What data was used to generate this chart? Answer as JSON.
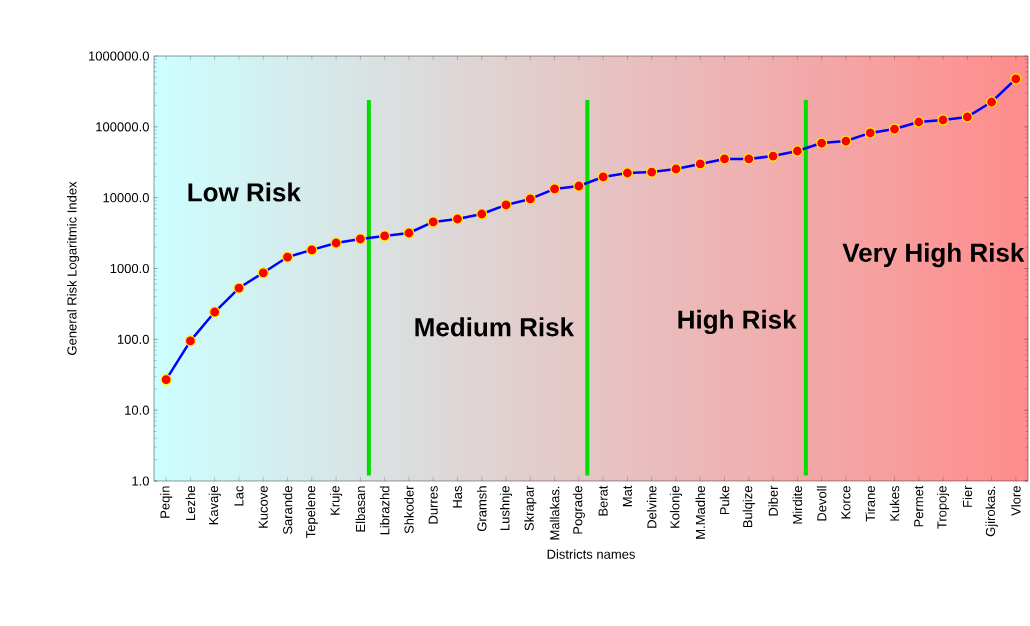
{
  "chart_data": {
    "type": "line",
    "xlabel": "Districts names",
    "ylabel": "General Risk Logaritmic Index",
    "categories": [
      "Peqin",
      "Lezhe",
      "Kavaje",
      "Lac",
      "Kucove",
      "Sarande",
      "Tepelene",
      "Kruje",
      "Elbasan",
      "Librazhd",
      "Shkoder",
      "Durres",
      "Has",
      "Gramsh",
      "Lushnje",
      "Skrapar",
      "Mallakas.",
      "Pograde",
      "Berat",
      "Mat",
      "Delvine",
      "Kolonje",
      "M.Madhe",
      "Puke",
      "Bulqize",
      "Diber",
      "Mirdite",
      "Devoll",
      "Korce",
      "Tirane",
      "Kukes",
      "Permet",
      "Tropoje",
      "Fier",
      "Gjirokas.",
      "Vlore"
    ],
    "series": [
      {
        "color": "#0000ff",
        "values": [
          27,
          95,
          243,
          530,
          870,
          1450,
          1830,
          2290,
          2610,
          2880,
          3170,
          4540,
          5000,
          5880,
          7900,
          9600,
          13300,
          14600,
          19600,
          22300,
          23000,
          25400,
          29900,
          35200,
          35200,
          38700,
          45600,
          59000,
          63000,
          82000,
          93000,
          117000,
          125000,
          138000,
          224000,
          474000
        ]
      }
    ],
    "log": "y",
    "ylim": [
      1,
      1000000
    ],
    "yticks": [
      {
        "value": 1,
        "label": "1.0"
      },
      {
        "value": 10,
        "label": "10.0"
      },
      {
        "value": 100,
        "label": "100.0"
      },
      {
        "value": 1000,
        "label": "1000.0"
      },
      {
        "value": 10000,
        "label": "10000.0"
      },
      {
        "value": 100000,
        "label": "100000.0"
      },
      {
        "value": 1000000,
        "label": "1000000.0"
      }
    ],
    "marker": "circle",
    "line_style": "solid",
    "grid": false,
    "ref_lines": [
      {
        "axis": "x",
        "value": "Elbasan",
        "color": "#00dd00"
      },
      {
        "axis": "x",
        "value": "Pograde",
        "color": "#00dd00"
      },
      {
        "axis": "x",
        "value": "Mirdite",
        "color": "#00dd00"
      }
    ],
    "annotations": [
      "Low Risk",
      "Medium Risk",
      "High Risk",
      "Very High Risk"
    ]
  }
}
